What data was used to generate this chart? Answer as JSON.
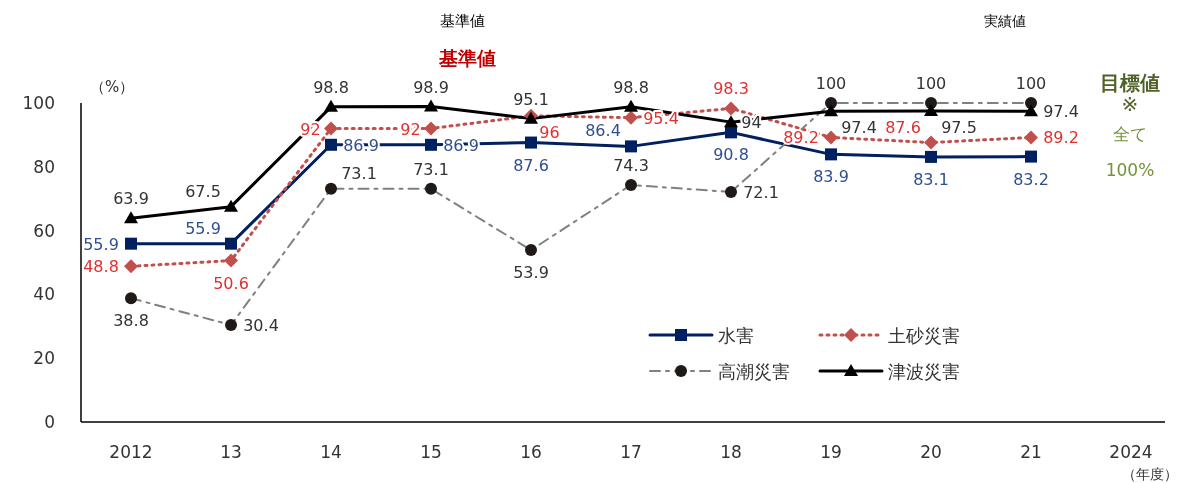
{
  "chart_data": {
    "type": "line",
    "ylabel": "（%）",
    "xlabel": "（年度）",
    "categories": [
      "2012",
      "13",
      "14",
      "15",
      "16",
      "17",
      "18",
      "19",
      "20",
      "21",
      "2024"
    ],
    "ylim": [
      0,
      100
    ],
    "yticks": [
      0,
      20,
      40,
      60,
      80,
      100
    ],
    "grid": false,
    "legend": "bottom right",
    "data_labels": true,
    "annotations": [
      "基準値",
      "実績値",
      "基準値",
      "目標値",
      "※",
      "全て",
      "100%"
    ],
    "series": [
      {
        "name": "水害",
        "color": "#002060",
        "marker": "square",
        "line_style": "solid",
        "values": [
          55.9,
          55.9,
          86.9,
          86.9,
          87.6,
          86.4,
          90.8,
          83.9,
          83.1,
          83.2,
          null
        ]
      },
      {
        "name": "土砂災害",
        "color": "#c0504d",
        "marker": "diamond",
        "line_style": "dotted",
        "values": [
          48.8,
          50.6,
          92,
          92,
          96,
          95.4,
          98.3,
          89.2,
          87.6,
          89.2,
          null
        ]
      },
      {
        "name": "高潮災害",
        "color": "#1f1a17",
        "marker": "circle",
        "line_style": "dashed",
        "values": [
          38.8,
          30.4,
          73.1,
          73.1,
          53.9,
          74.3,
          72.1,
          100,
          100,
          100,
          null
        ]
      },
      {
        "name": "津波災害",
        "color": "#000000",
        "marker": "triangle",
        "line_style": "solid",
        "values": [
          63.9,
          67.5,
          98.8,
          98.9,
          95.1,
          98.8,
          94,
          97.4,
          97.5,
          97.4,
          null
        ]
      }
    ]
  }
}
